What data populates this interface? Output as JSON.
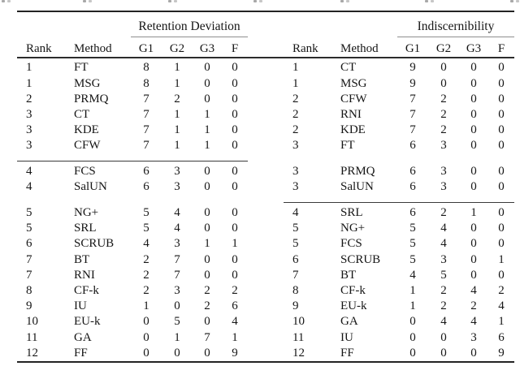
{
  "left_table": {
    "spanner": "Retention Deviation",
    "columns": [
      "Rank",
      "Method",
      "G1",
      "G2",
      "G3",
      "F"
    ],
    "groups": [
      [
        [
          "1",
          "FT",
          "8",
          "1",
          "0",
          "0"
        ],
        [
          "1",
          "MSG",
          "8",
          "1",
          "0",
          "0"
        ],
        [
          "2",
          "PRMQ",
          "7",
          "2",
          "0",
          "0"
        ],
        [
          "3",
          "CT",
          "7",
          "1",
          "1",
          "0"
        ],
        [
          "3",
          "KDE",
          "7",
          "1",
          "1",
          "0"
        ],
        [
          "3",
          "CFW",
          "7",
          "1",
          "1",
          "0"
        ]
      ],
      [
        [
          "4",
          "FCS",
          "6",
          "3",
          "0",
          "0"
        ],
        [
          "4",
          "SalUN",
          "6",
          "3",
          "0",
          "0"
        ]
      ],
      [
        [
          "5",
          "NG+",
          "5",
          "4",
          "0",
          "0"
        ],
        [
          "5",
          "SRL",
          "5",
          "4",
          "0",
          "0"
        ],
        [
          "6",
          "SCRUB",
          "4",
          "3",
          "1",
          "1"
        ],
        [
          "7",
          "BT",
          "2",
          "7",
          "0",
          "0"
        ],
        [
          "7",
          "RNI",
          "2",
          "7",
          "0",
          "0"
        ],
        [
          "8",
          "CF-k",
          "2",
          "3",
          "2",
          "2"
        ],
        [
          "9",
          "IU",
          "1",
          "0",
          "2",
          "6"
        ],
        [
          "10",
          "EU-k",
          "0",
          "5",
          "0",
          "4"
        ],
        [
          "11",
          "GA",
          "0",
          "1",
          "7",
          "1"
        ],
        [
          "12",
          "FF",
          "0",
          "0",
          "0",
          "9"
        ]
      ]
    ],
    "separators": [
      "rule",
      "space"
    ]
  },
  "right_table": {
    "spanner": "Indiscernibility",
    "columns": [
      "Rank",
      "Method",
      "G1",
      "G2",
      "G3",
      "F"
    ],
    "groups": [
      [
        [
          "1",
          "CT",
          "9",
          "0",
          "0",
          "0"
        ],
        [
          "1",
          "MSG",
          "9",
          "0",
          "0",
          "0"
        ],
        [
          "2",
          "CFW",
          "7",
          "2",
          "0",
          "0"
        ],
        [
          "2",
          "RNI",
          "7",
          "2",
          "0",
          "0"
        ],
        [
          "2",
          "KDE",
          "7",
          "2",
          "0",
          "0"
        ],
        [
          "3",
          "FT",
          "6",
          "3",
          "0",
          "0"
        ]
      ],
      [
        [
          "3",
          "PRMQ",
          "6",
          "3",
          "0",
          "0"
        ],
        [
          "3",
          "SalUN",
          "6",
          "3",
          "0",
          "0"
        ]
      ],
      [
        [
          "4",
          "SRL",
          "6",
          "2",
          "1",
          "0"
        ],
        [
          "5",
          "NG+",
          "5",
          "4",
          "0",
          "0"
        ],
        [
          "5",
          "FCS",
          "5",
          "4",
          "0",
          "0"
        ],
        [
          "6",
          "SCRUB",
          "5",
          "3",
          "0",
          "1"
        ],
        [
          "7",
          "BT",
          "4",
          "5",
          "0",
          "0"
        ],
        [
          "8",
          "CF-k",
          "1",
          "2",
          "4",
          "2"
        ],
        [
          "9",
          "EU-k",
          "1",
          "2",
          "2",
          "4"
        ],
        [
          "10",
          "GA",
          "0",
          "4",
          "4",
          "1"
        ],
        [
          "11",
          "IU",
          "0",
          "0",
          "3",
          "6"
        ],
        [
          "12",
          "FF",
          "0",
          "0",
          "0",
          "9"
        ]
      ]
    ],
    "separators": [
      "space",
      "rule"
    ]
  }
}
